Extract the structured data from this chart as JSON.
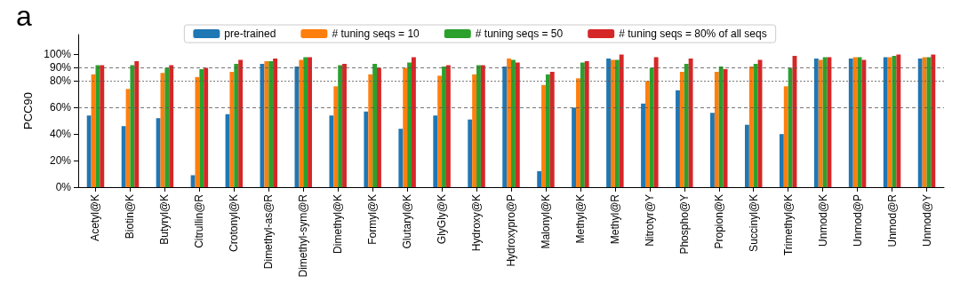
{
  "chart_data": {
    "type": "bar",
    "ylabel": "PCC90",
    "annotations": [
      "a"
    ],
    "categories": [
      "Acetyl@K",
      "Biotin@K",
      "Butyryl@K",
      "Citrullin@R",
      "Crotonyl@K",
      "Dimethyl-as@R",
      "Dimethyl-sym@R",
      "Dimethyl@K",
      "Formyl@K",
      "Glutaryl@K",
      "GlyGly@K",
      "Hydroxy@K",
      "Hydroxypro@P",
      "Malonyl@K",
      "Methyl@K",
      "Methyl@R",
      "Nitrotyr@Y",
      "Phospho@Y",
      "Propion@K",
      "Succinyl@K",
      "Trimethyl@K",
      "Unmod@K",
      "Unmod@P",
      "Unmod@R",
      "Unmod@Y"
    ],
    "series": [
      {
        "name": "pre-trained",
        "color": "#1f77b4",
        "values": [
          54,
          46,
          52,
          9,
          55,
          93,
          91,
          54,
          57,
          44,
          54,
          51,
          91,
          12,
          60,
          97,
          63,
          73,
          56,
          47,
          40,
          97,
          97,
          98,
          97
        ]
      },
      {
        "name": "# tuning seqs = 10",
        "color": "#ff7f0e",
        "values": [
          85,
          74,
          86,
          83,
          87,
          95,
          96,
          76,
          85,
          90,
          84,
          85,
          97,
          77,
          82,
          96,
          80,
          87,
          87,
          91,
          76,
          96,
          98,
          98,
          98
        ]
      },
      {
        "name": "# tuning seqs = 50",
        "color": "#2ca02c",
        "values": [
          92,
          92,
          90,
          89,
          93,
          95,
          98,
          92,
          93,
          94,
          91,
          92,
          96,
          85,
          94,
          96,
          90,
          93,
          91,
          93,
          90,
          98,
          98,
          99,
          98
        ]
      },
      {
        "name": "# tuning seqs = 80% of all seqs",
        "color": "#d62728",
        "values": [
          92,
          95,
          92,
          90,
          96,
          97,
          98,
          93,
          90,
          98,
          92,
          92,
          94,
          87,
          95,
          100,
          98,
          97,
          89,
          96,
          99,
          98,
          96,
          100,
          100
        ]
      }
    ],
    "ylim": [
      0,
      115
    ],
    "yticks": [
      {
        "value": 0,
        "label": "0%"
      },
      {
        "value": 20,
        "label": "20%"
      },
      {
        "value": 40,
        "label": "40%"
      },
      {
        "value": 60,
        "label": "60%"
      },
      {
        "value": 80,
        "label": "80%"
      },
      {
        "value": 90,
        "label": "90%"
      },
      {
        "value": 100,
        "label": "100%"
      }
    ],
    "ref_lines": [
      {
        "axis": "y",
        "value": 60,
        "line_style": "dashed"
      },
      {
        "axis": "y",
        "value": 80,
        "line_style": "dotted"
      },
      {
        "axis": "y",
        "value": 90,
        "line_style": "dashed"
      }
    ],
    "grid": false,
    "legend": "top"
  }
}
